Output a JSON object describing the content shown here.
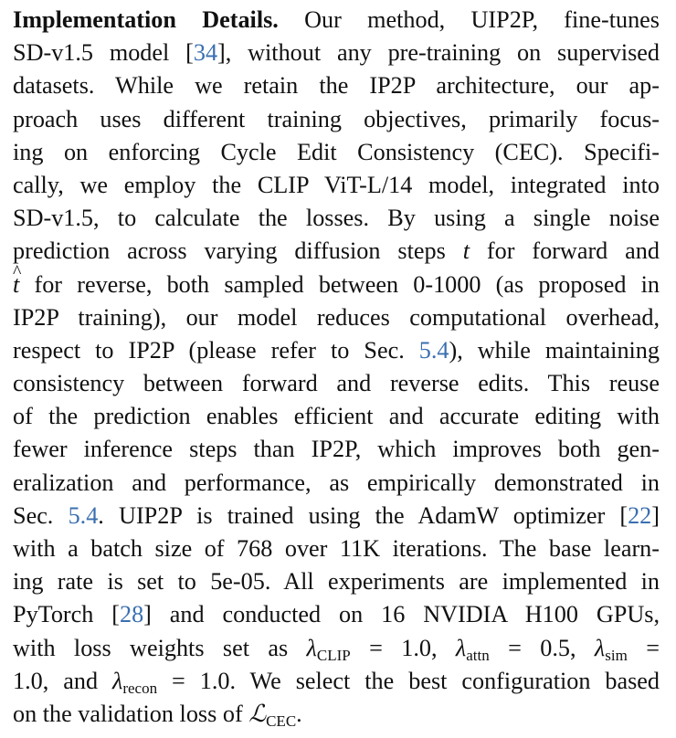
{
  "paragraph": {
    "heading": "Implementation Details.",
    "lines": [
      {
        "a": " Our method, UIP2P, fine-tunes"
      },
      {
        "a": "SD-v1.5 model [",
        "c1": "34",
        "b": "], without any pre-training on supervised"
      },
      {
        "a": "datasets.  While we retain the IP2P architecture, our ap-"
      },
      {
        "a": "proach uses different training objectives, primarily focus-"
      },
      {
        "a": "ing on enforcing Cycle Edit Consistency (CEC). Specifi-"
      },
      {
        "a": "cally, we employ the CLIP ViT-L/14 model, integrated into"
      },
      {
        "a": "SD-v1.5, to calculate the losses.  By using a single noise"
      },
      {
        "a": "prediction across varying diffusion steps ",
        "m": "t",
        "b": " for forward and"
      },
      {
        "m": "t",
        "a": " for reverse, both sampled between 0-1000 (as proposed in"
      },
      {
        "a": "IP2P training), our model reduces computational overhead,"
      },
      {
        "a": "respect to IP2P (please refer to Sec. ",
        "c1": "5.4",
        "b": "), while maintaining"
      },
      {
        "a": "consistency between forward and reverse edits.  This reuse"
      },
      {
        "a": "of the prediction enables efficient and accurate editing with"
      },
      {
        "a": "fewer inference steps than IP2P, which improves both gen-"
      },
      {
        "a": "eralization and performance, as empirically demonstrated in"
      },
      {
        "a": "Sec. ",
        "c1": "5.4",
        "b": ". UIP2P is trained using the AdamW optimizer [",
        "c2": "22",
        "d": "]"
      },
      {
        "a": "with a batch size of 768 over 11K iterations. The base learn-"
      },
      {
        "a": "ing rate is set to 5e-05. All experiments are implemented in"
      },
      {
        "a": "PyTorch [",
        "c1": "28",
        "b": "] and conducted on 16 NVIDIA H100 GPUs,"
      },
      {
        "a": "with loss weights set as ",
        "l1": "λ",
        "s1": "CLIP",
        "e1": " = 1.0, ",
        "l2": "λ",
        "s2": "attn",
        "e2": " = 0.5, ",
        "l3": "λ",
        "s3": "sim",
        "e3": " ="
      },
      {
        "a": "1.0, and ",
        "l1": "λ",
        "s1": "recon",
        "b": " = 1.0. We select the best configuration based"
      },
      {
        "a": "on the validation loss of ",
        "L": "ℒ",
        "s1": "CEC",
        "b": "."
      }
    ]
  }
}
